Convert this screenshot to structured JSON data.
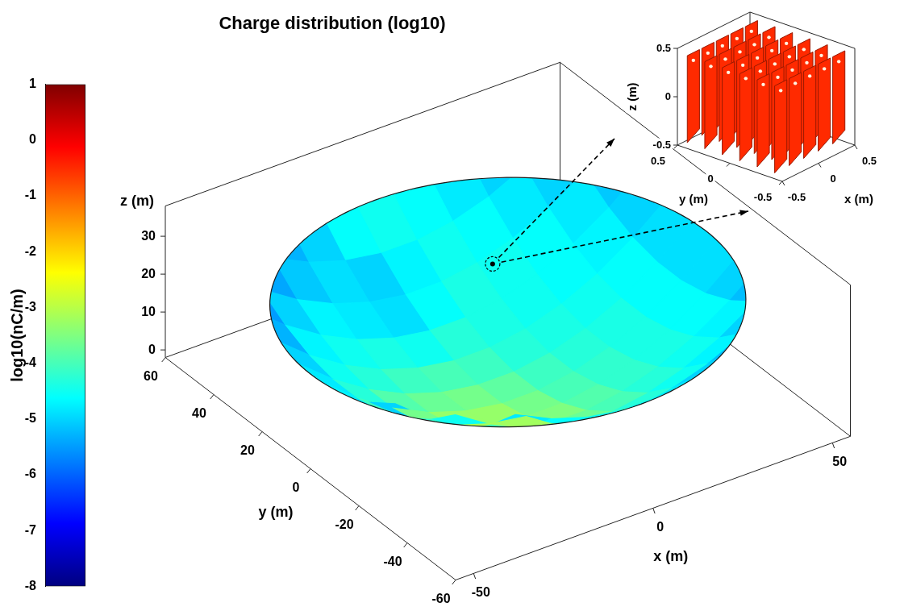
{
  "chart_data": {
    "type": "surface",
    "title": "Charge distribution (log10)",
    "x_label": "x (m)",
    "y_label": "y (m)",
    "z_label": "z (m)",
    "xlim": [
      -55,
      55
    ],
    "xticks": [
      -50,
      0,
      50
    ],
    "ylim": [
      -60,
      60
    ],
    "yticks": [
      -60,
      -40,
      -20,
      0,
      20,
      40,
      60
    ],
    "zlim": [
      -2,
      38
    ],
    "zticks": [
      0,
      10,
      20,
      30
    ],
    "grid": false,
    "dish": {
      "radius": 55,
      "rim_z": 23,
      "vertex_z": 0
    },
    "cells": {
      "x": [
        -50,
        -40,
        -30,
        -20,
        -10,
        0,
        10,
        20,
        30,
        40,
        50
      ],
      "y": [
        50,
        40,
        30,
        20,
        10,
        0,
        -10,
        -20,
        -30,
        -40,
        -50
      ],
      "values": [
        [
          null,
          null,
          -5.3,
          -5.0,
          -4.6,
          -4.5,
          -4.6,
          -4.8,
          -5.0,
          null,
          null
        ],
        [
          null,
          -5.4,
          -5.1,
          -4.9,
          -5.0,
          -4.7,
          -4.5,
          -4.6,
          -4.8,
          -5.0,
          null
        ],
        [
          -5.5,
          -5.0,
          -4.7,
          -4.8,
          -4.9,
          -4.6,
          -4.4,
          -4.5,
          -4.6,
          -4.8,
          -5.1
        ],
        [
          -5.3,
          -4.7,
          -4.5,
          -4.4,
          -4.5,
          -4.3,
          -4.4,
          -4.5,
          -4.6,
          -4.7,
          -5.0
        ],
        [
          -5.0,
          -4.5,
          -4.3,
          -4.1,
          -4.0,
          -4.1,
          -4.3,
          -4.4,
          -4.5,
          -4.6,
          -4.9
        ],
        [
          -4.8,
          -4.3,
          -3.9,
          -3.7,
          -3.6,
          -3.8,
          -4.1,
          -4.3,
          -4.4,
          -4.6,
          -4.9
        ],
        [
          -4.7,
          -4.1,
          -3.6,
          -3.3,
          -3.3,
          -3.6,
          -4.0,
          -4.2,
          -4.4,
          -4.6,
          -4.9
        ],
        [
          -4.8,
          -4.0,
          -3.4,
          -3.1,
          -3.2,
          -3.5,
          -3.9,
          -4.2,
          -4.4,
          -4.6,
          -5.0
        ],
        [
          -5.0,
          -4.2,
          -3.6,
          -3.3,
          -3.4,
          -3.7,
          -4.0,
          -4.3,
          -4.5,
          -4.7,
          -5.2
        ],
        [
          null,
          -4.5,
          -4.0,
          -3.8,
          -3.9,
          -4.0,
          -4.3,
          -4.5,
          -4.7,
          -5.0,
          null
        ],
        [
          null,
          null,
          -4.8,
          -4.6,
          -4.5,
          -4.6,
          -4.8,
          -5.0,
          -5.2,
          null,
          null
        ]
      ]
    },
    "colorbar": {
      "label": "log10(nC/m)",
      "range": [
        -8,
        1
      ],
      "ticks": [
        -8,
        -7,
        -6,
        -5,
        -4,
        -3,
        -2,
        -1,
        0,
        1
      ]
    },
    "inset": {
      "at": [
        18,
        33
      ],
      "value": -0.5,
      "x_label": "x (m)",
      "y_label": "y (m)",
      "z_label": "z (m)",
      "xlim": [
        -0.5,
        0.5
      ],
      "xticks": [
        -0.5,
        0,
        0.5
      ],
      "ylim": [
        -0.5,
        0.5
      ],
      "yticks": [
        -0.5,
        0,
        0.5
      ],
      "zlim": [
        -0.5,
        0.5
      ],
      "zticks": [
        -0.5,
        0,
        0.5
      ]
    }
  }
}
